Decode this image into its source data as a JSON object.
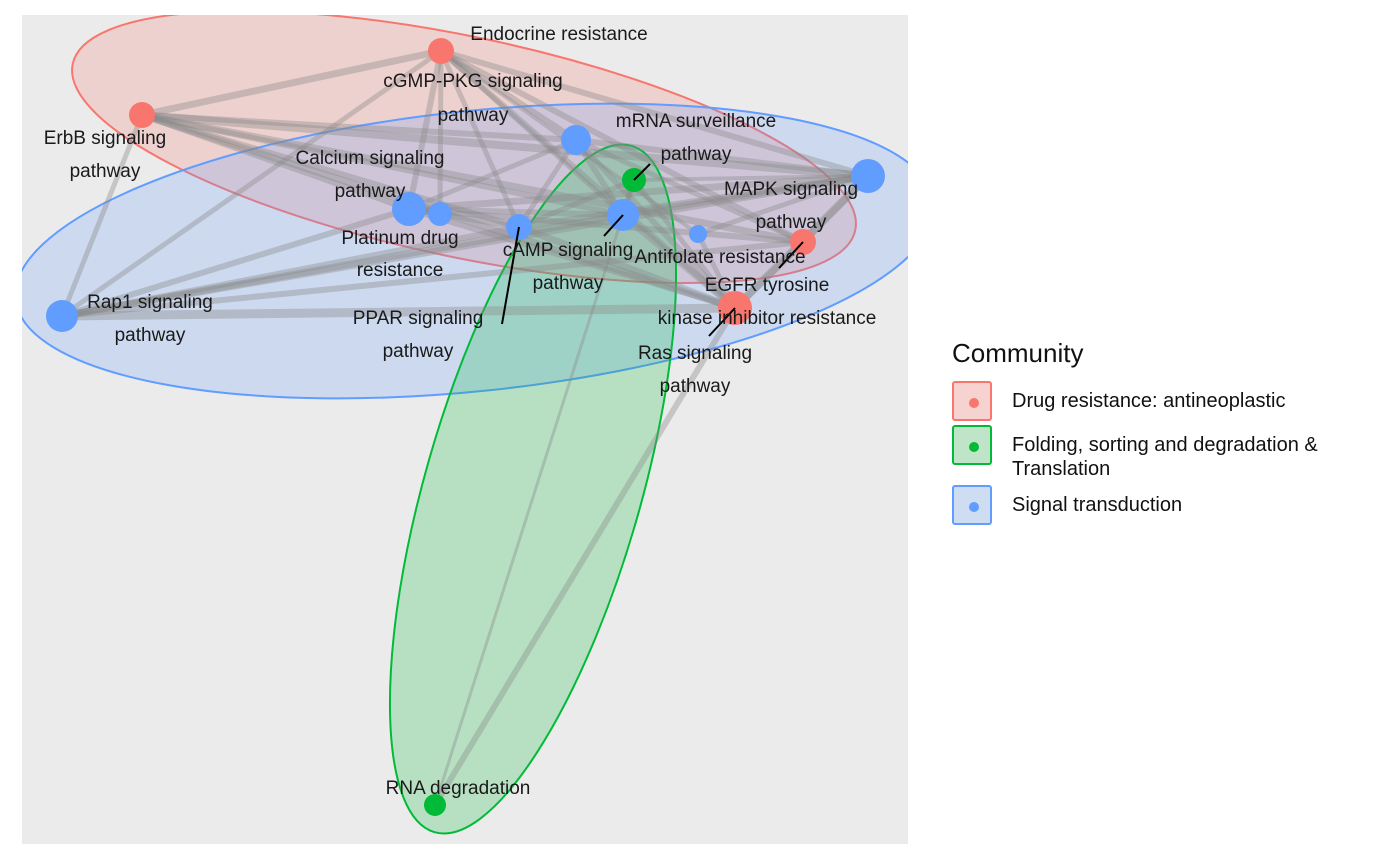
{
  "legend": {
    "title": "Community",
    "items": [
      {
        "label": "Drug resistance: antineoplastic",
        "color": "#F8766D",
        "fill": "#F6D3D1"
      },
      {
        "label": "Folding, sorting and degradation &\nTranslation",
        "color": "#00BA38",
        "fill": "#BFE4C8"
      },
      {
        "label": "Signal transduction",
        "color": "#619CFF",
        "fill": "#CFDDF3"
      }
    ]
  },
  "nodes": [
    {
      "id": "endocrine",
      "label": "Endocrine resistance",
      "community": 0
    },
    {
      "id": "cgmp",
      "label": "cGMP-PKG signaling\npathway",
      "community": 2
    },
    {
      "id": "erbb",
      "label": "ErbB signaling\npathway",
      "community": 0
    },
    {
      "id": "mrna",
      "label": "mRNA surveillance\npathway",
      "community": 1
    },
    {
      "id": "mrna_sig",
      "label": "",
      "community": 2
    },
    {
      "id": "calcium",
      "label": "Calcium signaling\npathway",
      "community": 2
    },
    {
      "id": "mapk",
      "label": "MAPK signaling\npathway",
      "community": 2
    },
    {
      "id": "platinum",
      "label": "Platinum drug\nresistance",
      "community": 0
    },
    {
      "id": "camp",
      "label": "cAMP signaling\npathway",
      "community": 2
    },
    {
      "id": "ppar",
      "label": "PPAR signaling\npathway",
      "community": 2
    },
    {
      "id": "antifolate",
      "label": "Antifolate resistance",
      "community": 2
    },
    {
      "id": "egfr",
      "label": "EGFR tyrosine\nkinase inhibitor resistance",
      "community": 0
    },
    {
      "id": "rap1",
      "label": "Rap1 signaling\npathway",
      "community": 2
    },
    {
      "id": "ras",
      "label": "Ras signaling\npathway",
      "community": 2
    },
    {
      "id": "rnadeg",
      "label": "RNA degradation",
      "community": 1
    }
  ]
}
